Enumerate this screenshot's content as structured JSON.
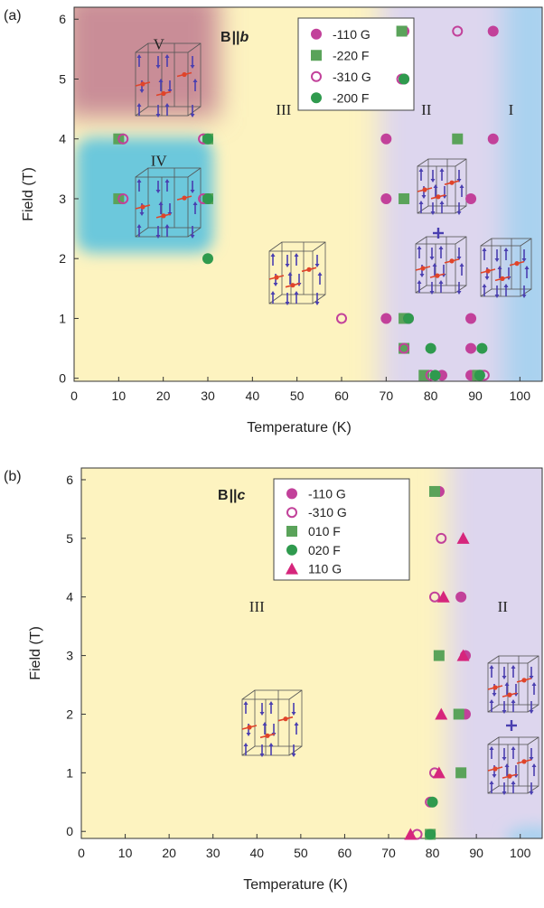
{
  "colors": {
    "magenta": "#c2419a",
    "green_sq": "#5aa35a",
    "green_dot": "#2f9a4e",
    "tri": "#d6267c",
    "spin_blue": "#4a3fb0",
    "spin_red": "#e0442a",
    "phase_III": "#fdf3c0",
    "phase_II": "#ddd6ee",
    "phase_I": "#a9d2ef",
    "phase_IV": "#6cc8dc",
    "phase_V": "#c98d97"
  },
  "chart_data": [
    {
      "type": "scatter",
      "panel_label": "(a)",
      "field_dir": {
        "main": "B",
        "sym": "||",
        "axis": "b"
      },
      "xlabel": "Temperature (K)",
      "ylabel": "Field (T)",
      "xlim": [
        0,
        105
      ],
      "ylim": [
        -0.05,
        6.2
      ],
      "xticks": [
        "0",
        "10",
        "20",
        "30",
        "40",
        "50",
        "60",
        "70",
        "80",
        "90",
        "100"
      ],
      "yticks": [
        "0",
        "1",
        "2",
        "3",
        "4",
        "5",
        "6"
      ],
      "xtick_values": [
        0,
        10,
        20,
        30,
        40,
        50,
        60,
        70,
        80,
        90,
        100
      ],
      "ytick_values": [
        0,
        1,
        2,
        3,
        4,
        5,
        6
      ],
      "legend": "top-right",
      "phases": [
        {
          "label": "V",
          "x": 19,
          "y": 5.5
        },
        {
          "label": "IV",
          "x": 19,
          "y": 3.55
        },
        {
          "label": "III",
          "x": 47,
          "y": 4.4
        },
        {
          "label": "II",
          "x": 79,
          "y": 4.4
        },
        {
          "label": "I",
          "x": 98,
          "y": 4.4
        }
      ],
      "series": [
        {
          "name": "-110 G",
          "marker": "circle",
          "color": "magenta",
          "points": [
            [
              74,
              5.8
            ],
            [
              94,
              5.8
            ],
            [
              74,
              5
            ],
            [
              70,
              4
            ],
            [
              94,
              4
            ],
            [
              70,
              3
            ],
            [
              89,
              3
            ],
            [
              70,
              1
            ],
            [
              89,
              1
            ],
            [
              89,
              0.5
            ],
            [
              89,
              0.05
            ],
            [
              82.5,
              0.05
            ]
          ]
        },
        {
          "name": "-220 F",
          "marker": "square",
          "color": "green_sq",
          "points": [
            [
              73.5,
              5.8
            ],
            [
              10,
              4
            ],
            [
              30,
              4
            ],
            [
              86,
              4
            ],
            [
              10,
              3
            ],
            [
              30,
              3
            ],
            [
              74,
              3
            ],
            [
              74,
              1
            ],
            [
              74,
              0.5
            ],
            [
              78.5,
              0.05
            ],
            [
              90.5,
              0.05
            ]
          ]
        },
        {
          "name": "-310 G",
          "marker": "ring",
          "color": "magenta",
          "points": [
            [
              86,
              5.8
            ],
            [
              11,
              4
            ],
            [
              29,
              4
            ],
            [
              11,
              3
            ],
            [
              29,
              3
            ],
            [
              73.5,
              5
            ],
            [
              60,
              1
            ],
            [
              75,
              1
            ],
            [
              74,
              0.5
            ],
            [
              80,
              0.05
            ],
            [
              92,
              0.05
            ]
          ]
        },
        {
          "name": "-200 F",
          "marker": "dot",
          "color": "green_dot",
          "points": [
            [
              74,
              5
            ],
            [
              30,
              4
            ],
            [
              30,
              3
            ],
            [
              30,
              2
            ],
            [
              75,
              1
            ],
            [
              80,
              0.5
            ],
            [
              91.5,
              0.5
            ],
            [
              81,
              0.05
            ],
            [
              91,
              0.05
            ]
          ]
        }
      ]
    },
    {
      "type": "scatter",
      "panel_label": "(b)",
      "field_dir": {
        "main": "B",
        "sym": "||",
        "axis": "c"
      },
      "xlabel": "Temperature (K)",
      "ylabel": "Field (T)",
      "xlim": [
        0,
        105
      ],
      "ylim": [
        -0.12,
        6.2
      ],
      "xticks": [
        "0",
        "10",
        "20",
        "30",
        "40",
        "50",
        "60",
        "70",
        "80",
        "90",
        "100"
      ],
      "yticks": [
        "0",
        "1",
        "2",
        "3",
        "4",
        "5",
        "6"
      ],
      "xtick_values": [
        0,
        10,
        20,
        30,
        40,
        50,
        60,
        70,
        80,
        90,
        100
      ],
      "ytick_values": [
        0,
        1,
        2,
        3,
        4,
        5,
        6
      ],
      "legend": "top-right",
      "phases": [
        {
          "label": "III",
          "x": 40,
          "y": 3.75
        },
        {
          "label": "II",
          "x": 96,
          "y": 3.75
        }
      ],
      "series": [
        {
          "name": "-110 G",
          "marker": "circle",
          "color": "magenta",
          "points": [
            [
              81.5,
              5.8
            ],
            [
              86.5,
              4
            ],
            [
              87.5,
              3
            ],
            [
              87.5,
              2
            ]
          ]
        },
        {
          "name": "-310 G",
          "marker": "ring",
          "color": "magenta",
          "points": [
            [
              81.5,
              5.8
            ],
            [
              82,
              5
            ],
            [
              80.5,
              4
            ],
            [
              80.5,
              1
            ],
            [
              79.5,
              0.5
            ],
            [
              76.5,
              -0.05
            ]
          ]
        },
        {
          "name": "010 F",
          "marker": "square",
          "color": "green_sq",
          "points": [
            [
              80.5,
              5.8
            ],
            [
              81.5,
              3
            ],
            [
              86,
              2
            ],
            [
              86.5,
              1
            ],
            [
              79.5,
              -0.05
            ]
          ]
        },
        {
          "name": "020 F",
          "marker": "dot",
          "color": "green_dot",
          "points": [
            [
              80,
              0.5
            ],
            [
              79.5,
              -0.05
            ]
          ]
        },
        {
          "name": "110 G",
          "marker": "triangle",
          "color": "tri",
          "points": [
            [
              87,
              5
            ],
            [
              82.5,
              4
            ],
            [
              87,
              3
            ],
            [
              82,
              2
            ],
            [
              81.5,
              1
            ],
            [
              75,
              -0.05
            ]
          ]
        }
      ]
    }
  ]
}
